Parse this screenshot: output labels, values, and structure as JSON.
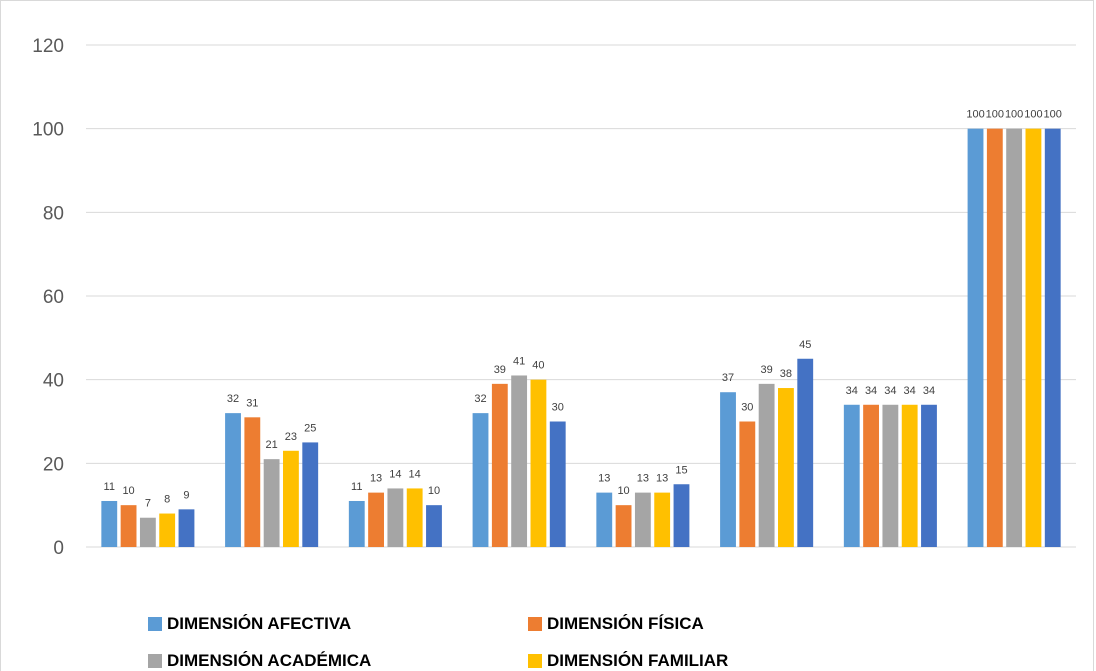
{
  "chart_data": {
    "type": "bar",
    "categories": [
      "",
      "",
      "",
      "",
      "",
      "",
      "",
      ""
    ],
    "series": [
      {
        "name": "DIMENSIÓN AFECTIVA",
        "color": "#5b9bd5",
        "values": [
          11,
          32,
          11,
          32,
          13,
          37,
          34,
          100
        ]
      },
      {
        "name": "DIMENSIÓN FÍSICA",
        "color": "#ed7d31",
        "values": [
          10,
          31,
          13,
          39,
          10,
          30,
          34,
          100
        ]
      },
      {
        "name": "DIMENSIÓN ACADÉMICA",
        "color": "#a5a5a5",
        "values": [
          7,
          21,
          14,
          41,
          13,
          39,
          34,
          100
        ]
      },
      {
        "name": "DIMENSIÓN FAMILIAR",
        "color": "#ffc000",
        "values": [
          8,
          23,
          14,
          40,
          13,
          38,
          34,
          100
        ]
      },
      {
        "name": "",
        "color": "#4472c4",
        "values": [
          9,
          25,
          10,
          30,
          15,
          45,
          34,
          100
        ]
      }
    ],
    "ylim": [
      0,
      120
    ],
    "yticks": [
      0,
      20,
      40,
      60,
      80,
      100,
      120
    ],
    "grid": true,
    "data_labels": true,
    "legend_position": "bottom",
    "title": "",
    "xlabel": "",
    "ylabel": ""
  },
  "legend": {
    "items": [
      {
        "label": "DIMENSIÓN AFECTIVA",
        "color": "#5b9bd5"
      },
      {
        "label": "DIMENSIÓN FÍSICA",
        "color": "#ed7d31"
      },
      {
        "label": "DIMENSIÓN ACADÉMICA",
        "color": "#a5a5a5"
      },
      {
        "label": "DIMENSIÓN FAMILIAR",
        "color": "#ffc000"
      }
    ]
  }
}
